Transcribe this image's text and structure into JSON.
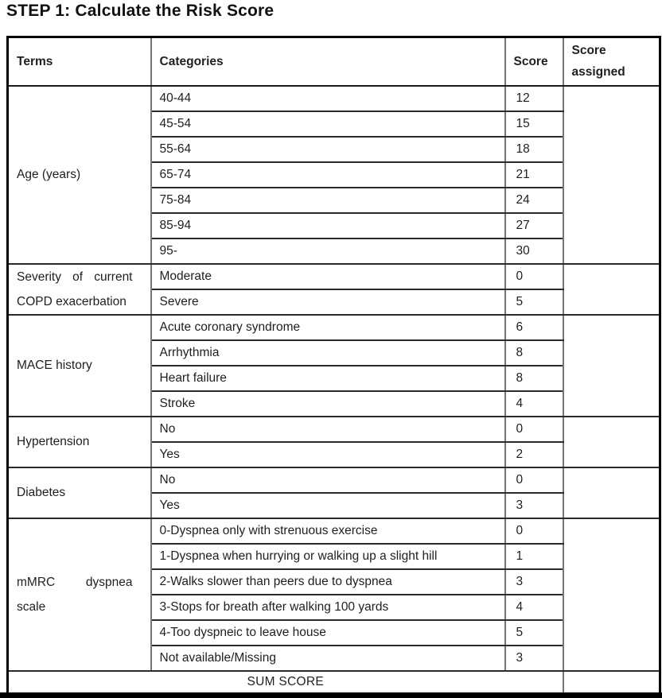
{
  "title": "STEP 1: Calculate the Risk Score",
  "colors": {
    "text": "#1f1f1f",
    "outer_border": "#000000",
    "inner_horizontal_border": "#2b2b2b",
    "inner_vertical_border": "#757575"
  },
  "table": {
    "headers": {
      "terms": "Terms",
      "categories": "Categories",
      "score": "Score",
      "score_assigned": "Score assigned"
    },
    "blocks": [
      {
        "term": "Age (years)",
        "rows": [
          {
            "category": "40-44",
            "score": "12"
          },
          {
            "category": "45-54",
            "score": "15"
          },
          {
            "category": "55-64",
            "score": "18"
          },
          {
            "category": "65-74",
            "score": "21"
          },
          {
            "category": "75-84",
            "score": "24"
          },
          {
            "category": "85-94",
            "score": "27"
          },
          {
            "category": "95-",
            "score": "30"
          }
        ]
      },
      {
        "term": "Severity of current COPD exacerbation",
        "rows": [
          {
            "category": "Moderate",
            "score": "0"
          },
          {
            "category": "Severe",
            "score": "5"
          }
        ]
      },
      {
        "term": "MACE history",
        "rows": [
          {
            "category": "Acute coronary syndrome",
            "score": "6"
          },
          {
            "category": "Arrhythmia",
            "score": "8"
          },
          {
            "category": "Heart failure",
            "score": "8"
          },
          {
            "category": "Stroke",
            "score": "4"
          }
        ]
      },
      {
        "term": "Hypertension",
        "rows": [
          {
            "category": "No",
            "score": "0"
          },
          {
            "category": "Yes",
            "score": "2"
          }
        ]
      },
      {
        "term": "Diabetes",
        "rows": [
          {
            "category": "No",
            "score": "0"
          },
          {
            "category": "Yes",
            "score": "3"
          }
        ]
      },
      {
        "term": "mMRC dyspnea scale",
        "rows": [
          {
            "category": "0-Dyspnea only with strenuous exercise",
            "score": "0"
          },
          {
            "category": "1-Dyspnea when hurrying or walking up a slight hill",
            "score": "1"
          },
          {
            "category": "2-Walks slower than peers due to dyspnea",
            "score": "3"
          },
          {
            "category": "3-Stops for breath after walking 100 yards",
            "score": "4"
          },
          {
            "category": "4-Too dyspneic to leave house",
            "score": "5"
          },
          {
            "category": "Not available/Missing",
            "score": "3"
          }
        ]
      }
    ],
    "sum_row": {
      "label": "SUM SCORE",
      "value": ""
    }
  }
}
